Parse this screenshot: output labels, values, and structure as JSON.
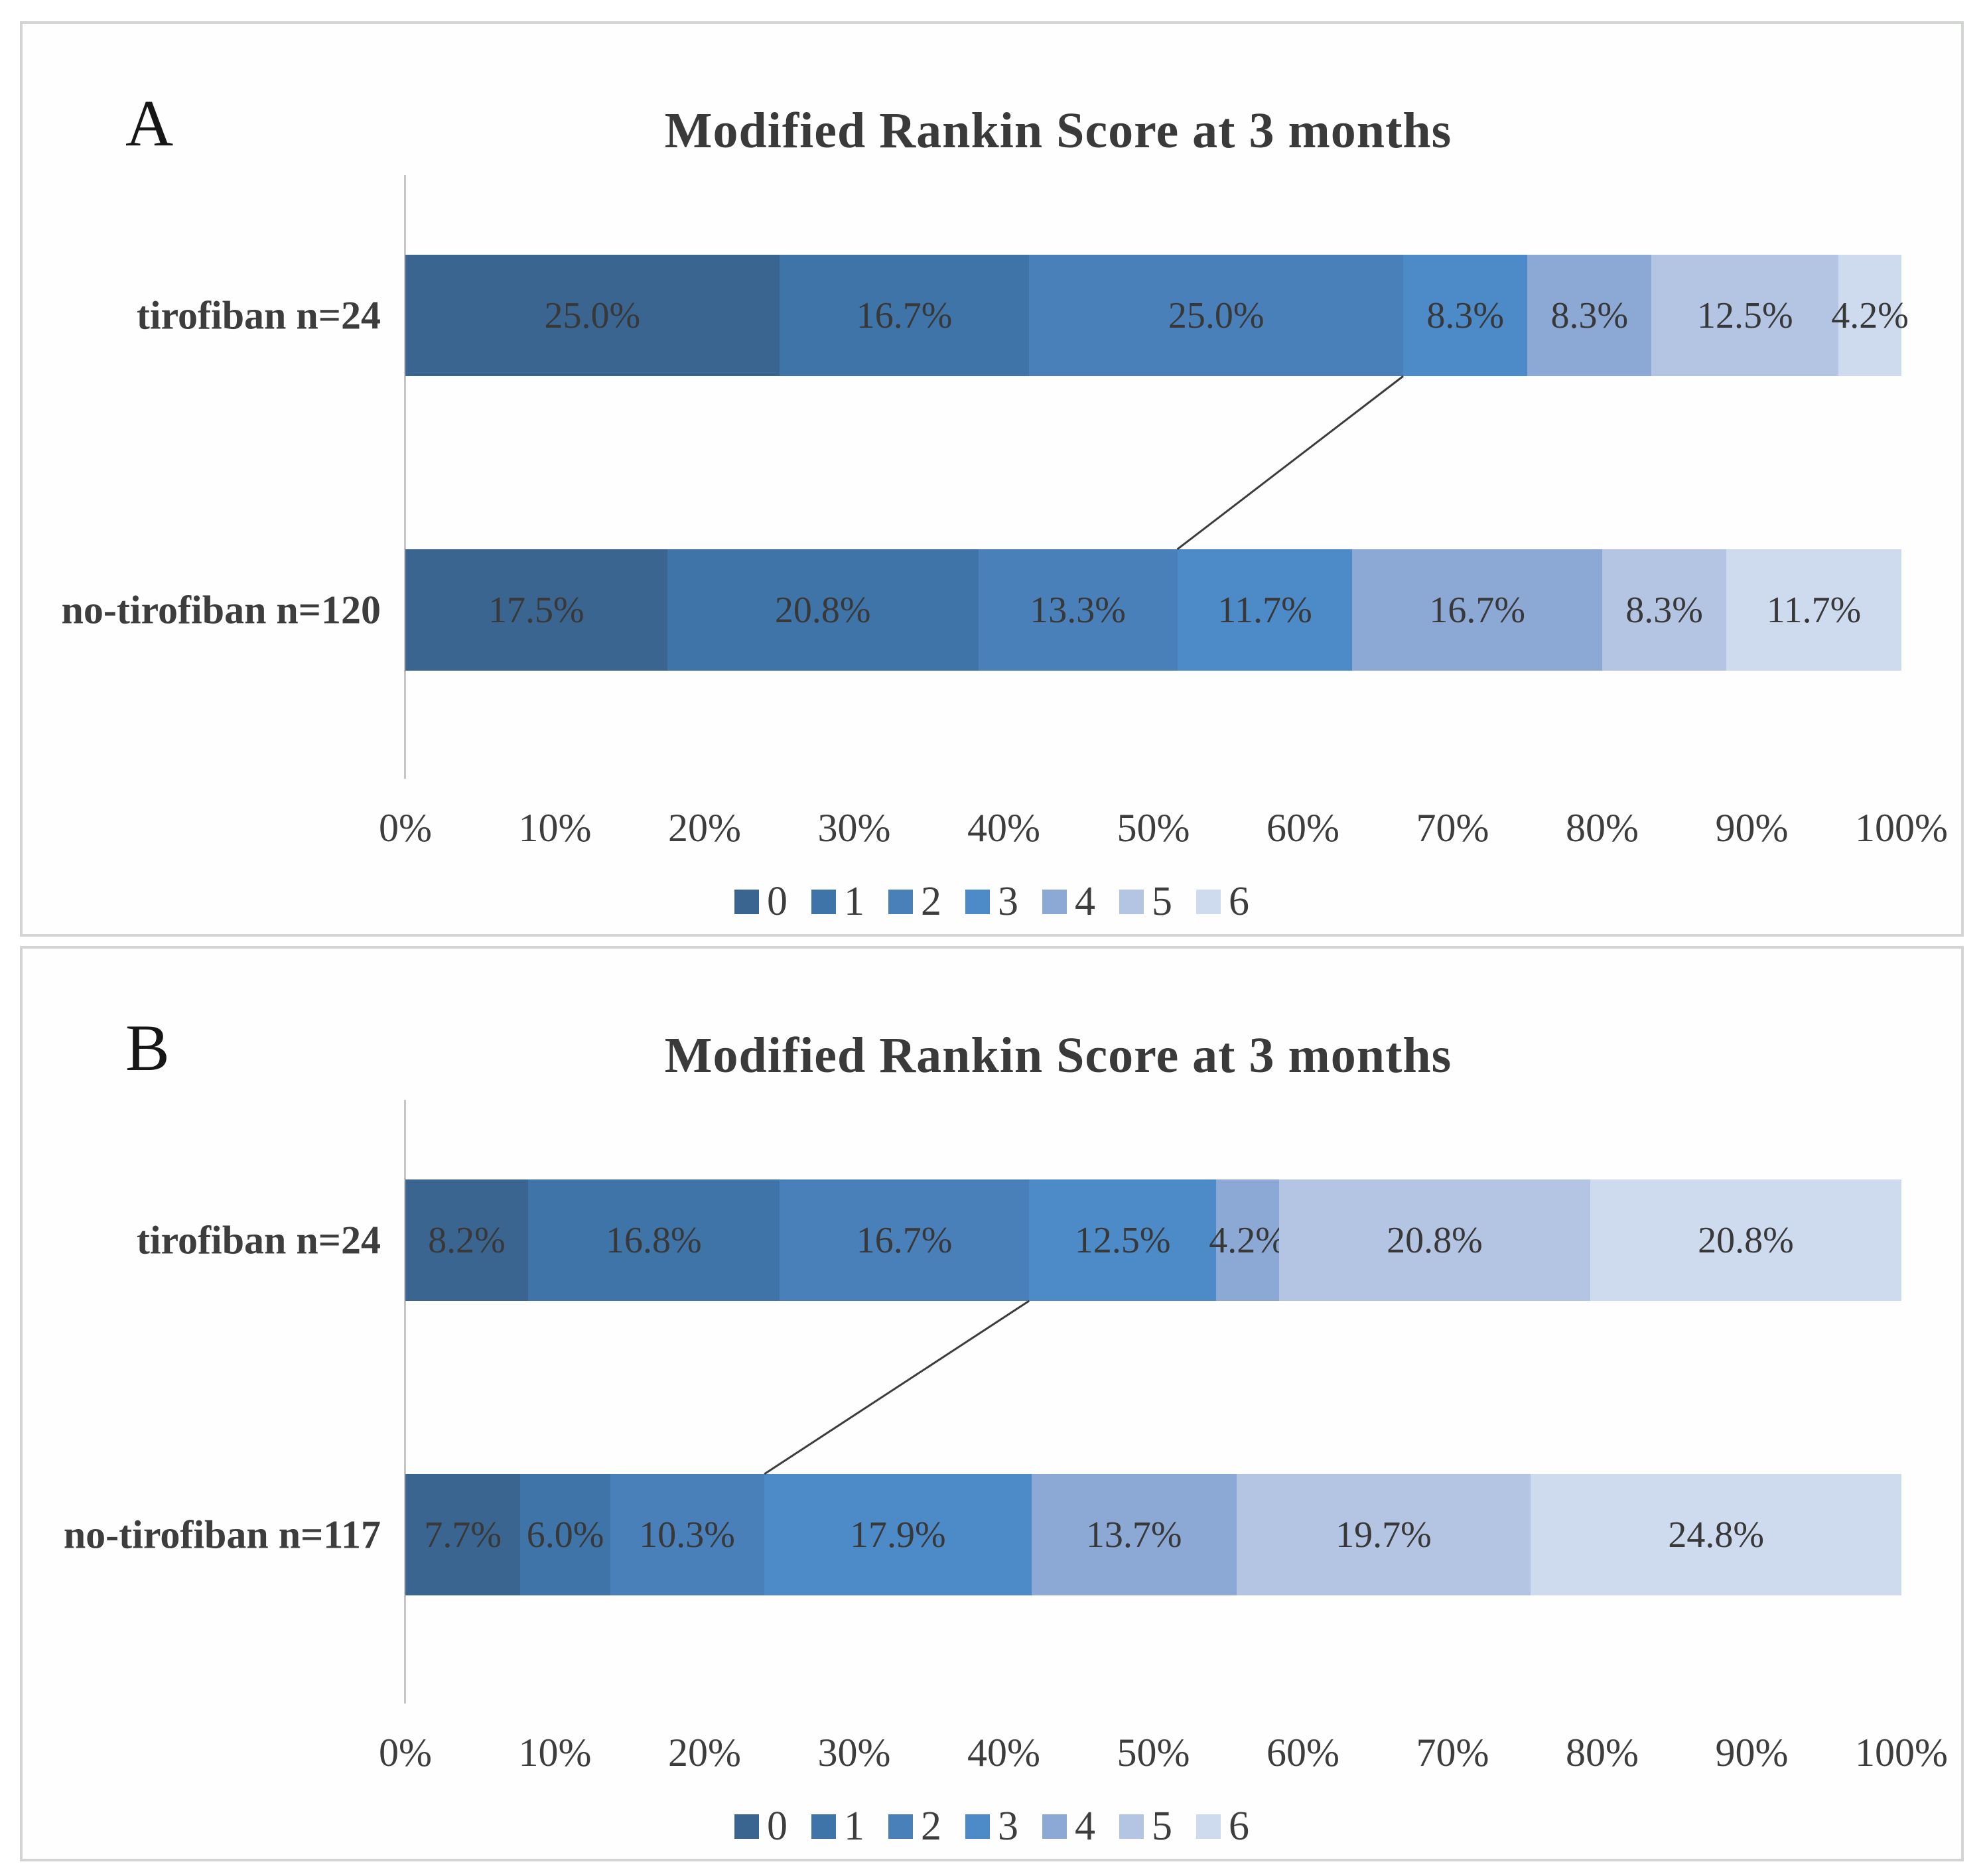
{
  "figure": {
    "panel_a": {
      "letter": "A",
      "title": "Modified Rankin Score at 3 months"
    },
    "panel_b": {
      "letter": "B",
      "title": "Modified Rankin Score at 3 months"
    }
  },
  "axis": {
    "tick_labels": [
      "0%",
      "10%",
      "20%",
      "30%",
      "40%",
      "50%",
      "60%",
      "70%",
      "80%",
      "90%",
      "100%"
    ]
  },
  "legend": {
    "labels": [
      "0",
      "1",
      "2",
      "3",
      "4",
      "5",
      "6"
    ]
  },
  "colors": {
    "mrs_scale": [
      "#3a6590",
      "#3e74a8",
      "#4a80ba",
      "#4c8ac8",
      "#8ba9d4",
      "#b3c5e2",
      "#cedbee"
    ],
    "segment_label_text": "#383838",
    "axis_line": "#c6c6c6",
    "connector_line": "#3c3c3c",
    "panel_border": "#d2d5d2"
  },
  "chart_data": [
    {
      "type": "bar",
      "subtype": "stacked-horizontal-100percent",
      "panel": "A",
      "title": "Modified Rankin Score at 3 months",
      "categories": [
        "tirofiban n=24",
        "no-tirofiban n=120"
      ],
      "series": [
        {
          "name": "0",
          "values": [
            25.0,
            17.5
          ]
        },
        {
          "name": "1",
          "values": [
            16.7,
            20.8
          ]
        },
        {
          "name": "2",
          "values": [
            25.0,
            13.3
          ]
        },
        {
          "name": "3",
          "values": [
            8.3,
            11.7
          ]
        },
        {
          "name": "4",
          "values": [
            8.3,
            16.7
          ]
        },
        {
          "name": "5",
          "values": [
            12.5,
            8.3
          ]
        },
        {
          "name": "6",
          "values": [
            4.2,
            11.7
          ]
        }
      ],
      "value_suffix": "%",
      "xlim": [
        0,
        100
      ],
      "x_tick_labels": [
        "0%",
        "10%",
        "20%",
        "30%",
        "40%",
        "50%",
        "60%",
        "70%",
        "80%",
        "90%",
        "100%"
      ],
      "legend_labels": [
        "0",
        "1",
        "2",
        "3",
        "4",
        "5",
        "6"
      ],
      "legend_position": "bottom",
      "grid": false,
      "connector_cut_after_n_series": 3
    },
    {
      "type": "bar",
      "subtype": "stacked-horizontal-100percent",
      "panel": "B",
      "title": "Modified Rankin Score at 3 months",
      "categories": [
        "tirofiban n=24",
        "no-tirofiban n=117"
      ],
      "series": [
        {
          "name": "0",
          "values": [
            8.2,
            7.7
          ]
        },
        {
          "name": "1",
          "values": [
            16.8,
            6.0
          ]
        },
        {
          "name": "2",
          "values": [
            16.7,
            10.3
          ]
        },
        {
          "name": "3",
          "values": [
            12.5,
            17.9
          ]
        },
        {
          "name": "4",
          "values": [
            4.2,
            13.7
          ]
        },
        {
          "name": "5",
          "values": [
            20.8,
            19.7
          ]
        },
        {
          "name": "6",
          "values": [
            20.8,
            24.8
          ]
        }
      ],
      "value_suffix": "%",
      "xlim": [
        0,
        100
      ],
      "x_tick_labels": [
        "0%",
        "10%",
        "20%",
        "30%",
        "40%",
        "50%",
        "60%",
        "70%",
        "80%",
        "90%",
        "100%"
      ],
      "legend_labels": [
        "0",
        "1",
        "2",
        "3",
        "4",
        "5",
        "6"
      ],
      "legend_position": "bottom",
      "grid": false,
      "connector_cut_after_n_series": 3
    }
  ]
}
